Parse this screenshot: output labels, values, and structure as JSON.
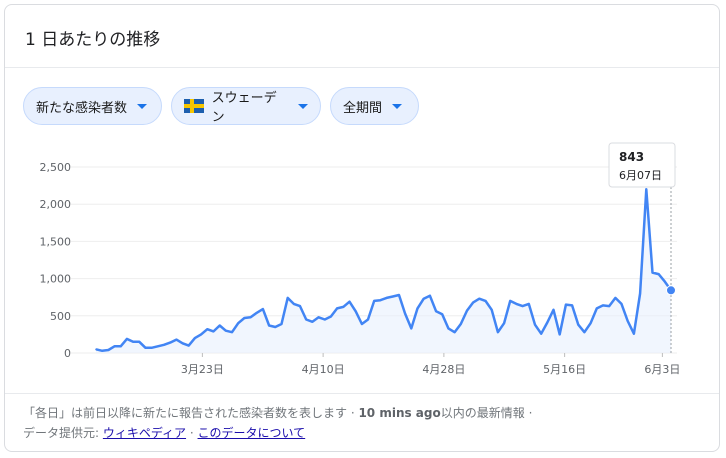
{
  "card": {
    "title": "1 日あたりの推移"
  },
  "filters": {
    "metric": "新たな感染者数",
    "country": "スウェーデン",
    "period": "全期間"
  },
  "tooltip": {
    "value": "843",
    "date": "6月07日"
  },
  "footer": {
    "line1_a": "「各日」は前日以降に新たに報告された感染者数を表します · ",
    "line1_bold": "10 mins ago",
    "line1_b": "以内の最新情報 ·",
    "line2_prefix": "データ提供元:",
    "wikipedia_link": "ウィキペディア",
    "separator": "·",
    "about_link": "このデータについて"
  },
  "colors": {
    "line": "#4285f4",
    "area": "#e8f0fe",
    "chip_bg": "#e8f0fe"
  },
  "chart_data": {
    "type": "line",
    "title": "",
    "xlabel": "",
    "ylabel": "",
    "ylim": [
      0,
      2500
    ],
    "y_ticks": [
      "0",
      "500",
      "1,000",
      "1,500",
      "2,000",
      "2,500"
    ],
    "x_ticks": [
      "3月23日",
      "4月10日",
      "4月28日",
      "5月16日",
      "6月3日"
    ],
    "series": [
      {
        "values": [
          50,
          30,
          40,
          90,
          90,
          190,
          150,
          150,
          70,
          70,
          90,
          110,
          140,
          180,
          130,
          100,
          200,
          250,
          320,
          290,
          370,
          300,
          280,
          400,
          470,
          480,
          540,
          590,
          370,
          350,
          390,
          740,
          660,
          630,
          450,
          420,
          480,
          450,
          490,
          600,
          620,
          690,
          560,
          390,
          450,
          700,
          710,
          740,
          760,
          780,
          530,
          330,
          600,
          730,
          770,
          560,
          520,
          330,
          280,
          390,
          570,
          680,
          730,
          700,
          580,
          280,
          400,
          700,
          660,
          630,
          660,
          380,
          260,
          410,
          580,
          250,
          650,
          640,
          380,
          280,
          400,
          600,
          640,
          630,
          740,
          660,
          430,
          260,
          800,
          2200,
          1080,
          1060,
          960,
          843
        ]
      }
    ]
  }
}
